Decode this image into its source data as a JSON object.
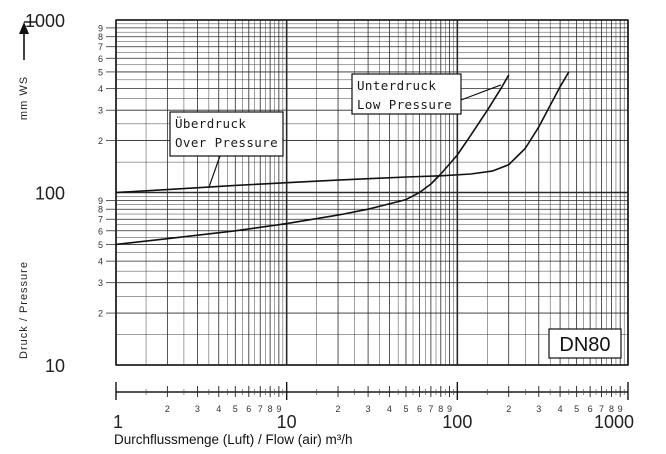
{
  "chart_data": {
    "type": "line",
    "title": "",
    "xlabel": "Durchflussmenge (Luft) / Flow (air)  m³/h",
    "ylabel_main": "Druck  /  Pressure",
    "ylabel_unit": "mm  WS",
    "x_scale": "log",
    "y_scale": "log",
    "xlim": [
      1,
      1000
    ],
    "ylim": [
      10,
      1000
    ],
    "grid": true,
    "badge": "DN80",
    "x_major_ticks": [
      "1",
      "10",
      "100",
      "1000"
    ],
    "x_minor_ticks": [
      "2",
      "3",
      "4",
      "5",
      "6",
      "7",
      "8",
      "9"
    ],
    "y_major_ticks": [
      "10",
      "100",
      "1000"
    ],
    "y_minor_ticks": [
      "2",
      "3",
      "4",
      "5",
      "6",
      "7",
      "8",
      "9"
    ],
    "series": [
      {
        "name": "Überdruck\nOver Pressure",
        "label_lines": [
          "Überdruck",
          "Over Pressure"
        ],
        "x": [
          1,
          2,
          5,
          10,
          20,
          50,
          80,
          120,
          160,
          200,
          250,
          300,
          350,
          400,
          450
        ],
        "y": [
          100,
          104,
          110,
          114,
          118,
          123,
          125,
          128,
          133,
          145,
          180,
          240,
          320,
          410,
          500
        ]
      },
      {
        "name": "Unterdruck\nLow Pressure",
        "label_lines": [
          "Unterdruck",
          "Low Pressure"
        ],
        "x": [
          1,
          2,
          5,
          10,
          20,
          30,
          50,
          60,
          70,
          80,
          100,
          120,
          150,
          180,
          200
        ],
        "y": [
          50,
          54,
          60,
          66,
          74,
          80,
          91,
          100,
          112,
          128,
          165,
          215,
          300,
          400,
          480
        ]
      }
    ]
  }
}
